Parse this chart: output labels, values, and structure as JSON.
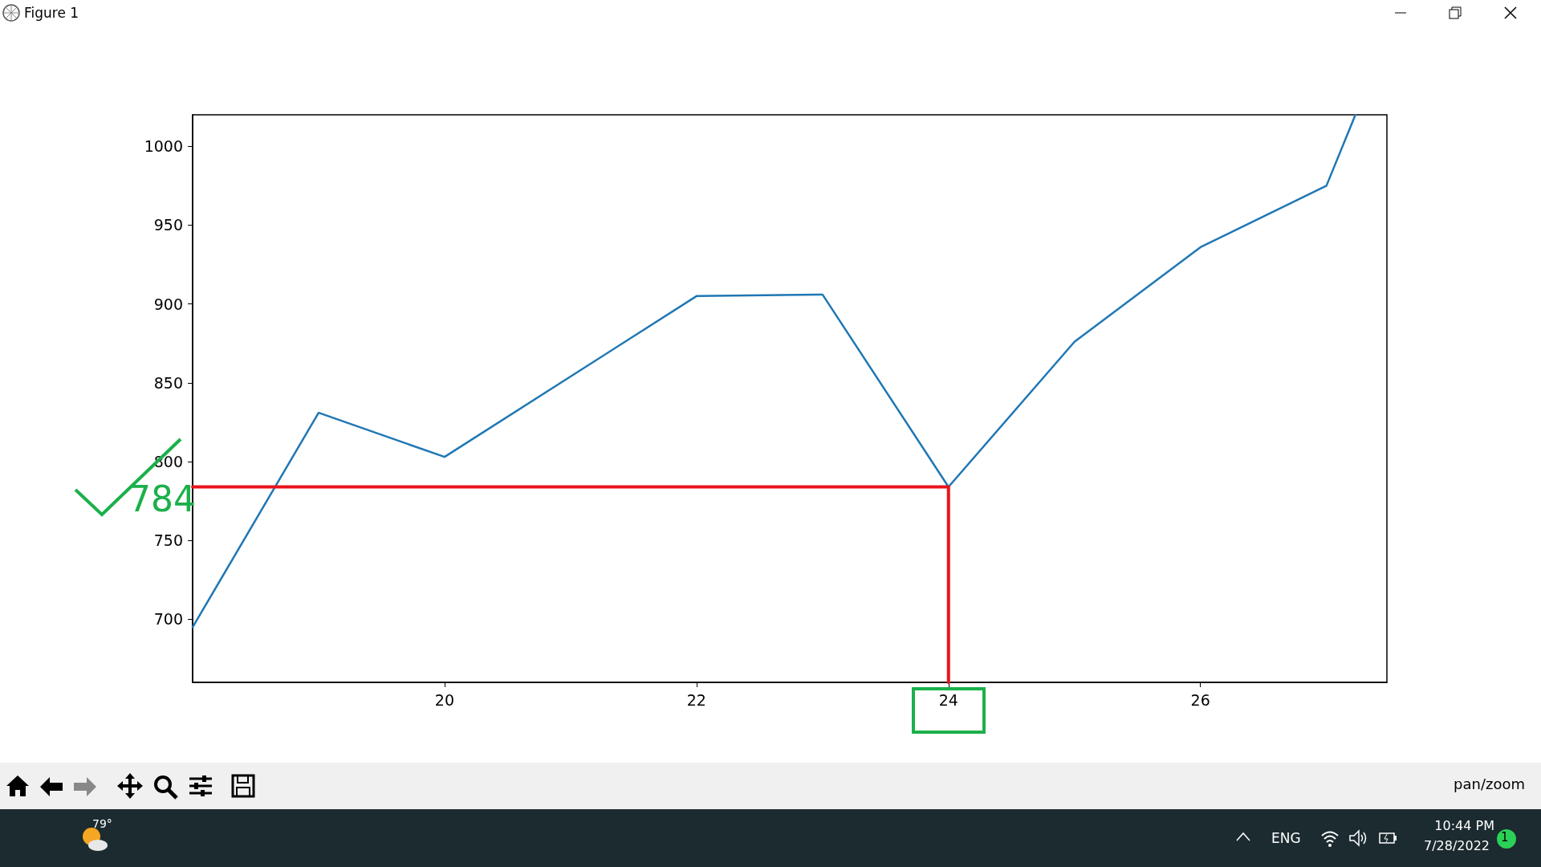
{
  "chart_data": {
    "type": "line",
    "series": [
      {
        "color": "#1f77b4",
        "x": [
          18,
          19,
          20,
          21,
          22,
          23,
          24,
          25,
          26,
          27,
          27.23
        ],
        "values": [
          695,
          831,
          803,
          854,
          905,
          906,
          784,
          876,
          936,
          975,
          1020
        ]
      },
      {
        "color": "#e8141c",
        "x": [
          18,
          24,
          24
        ],
        "values": [
          784,
          784,
          660
        ]
      }
    ],
    "xlim": [
      18,
      27.48
    ],
    "xticks": [
      20,
      22,
      24,
      26
    ],
    "ylim": [
      660,
      1020
    ],
    "yticks": [
      700,
      750,
      800,
      850,
      900,
      950,
      1000
    ],
    "grid": false,
    "marker": "none",
    "line_style": "solid",
    "annotations": [
      "Figure 1",
      "784",
      "pan/zoom",
      "79°",
      "ENG",
      "10:44 PM",
      "7/28/2022",
      "1"
    ]
  }
}
